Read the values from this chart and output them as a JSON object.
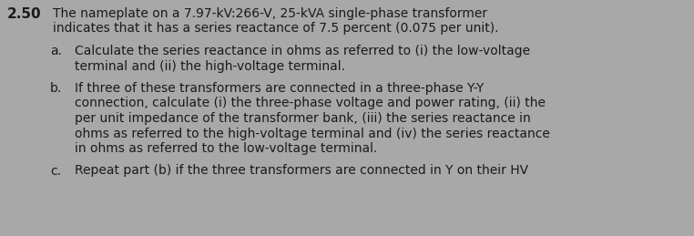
{
  "background_color": "#a8a8a8",
  "text_color": "#1a1a1a",
  "problem_number": "2.50",
  "fs_bold": 11.0,
  "fs_body": 10.0,
  "intro_line1": "The nameplate on a 7.97-kV:266-V, 25-kVA single-phase transformer",
  "intro_line2": "indicates that it has a series reactance of 7.5 percent (0.075 per unit).",
  "part_a_label": "a.",
  "part_a_line1": "Calculate the series reactance in ohms as referred to (i) the low-voltage",
  "part_a_line2": "terminal and (ii) the high-voltage terminal.",
  "part_b_label": "b.",
  "part_b_line1": "If three of these transformers are connected in a three-phase Y-Y",
  "part_b_line2": "connection, calculate (i) the three-phase voltage and power rating, (ii) the",
  "part_b_line3": "per unit impedance of the transformer bank, (iii) the series reactance in",
  "part_b_line4": "ohms as referred to the high‑voltage terminal and (iv) the series reactance",
  "part_b_line5": "in ohms as referred to the low-voltage terminal.",
  "part_c_label": "c.",
  "part_c_line1": "Repeat part (b) if the three transformers are connected in Y on their HV",
  "fig_width": 7.62,
  "fig_height": 2.59,
  "dpi": 100
}
